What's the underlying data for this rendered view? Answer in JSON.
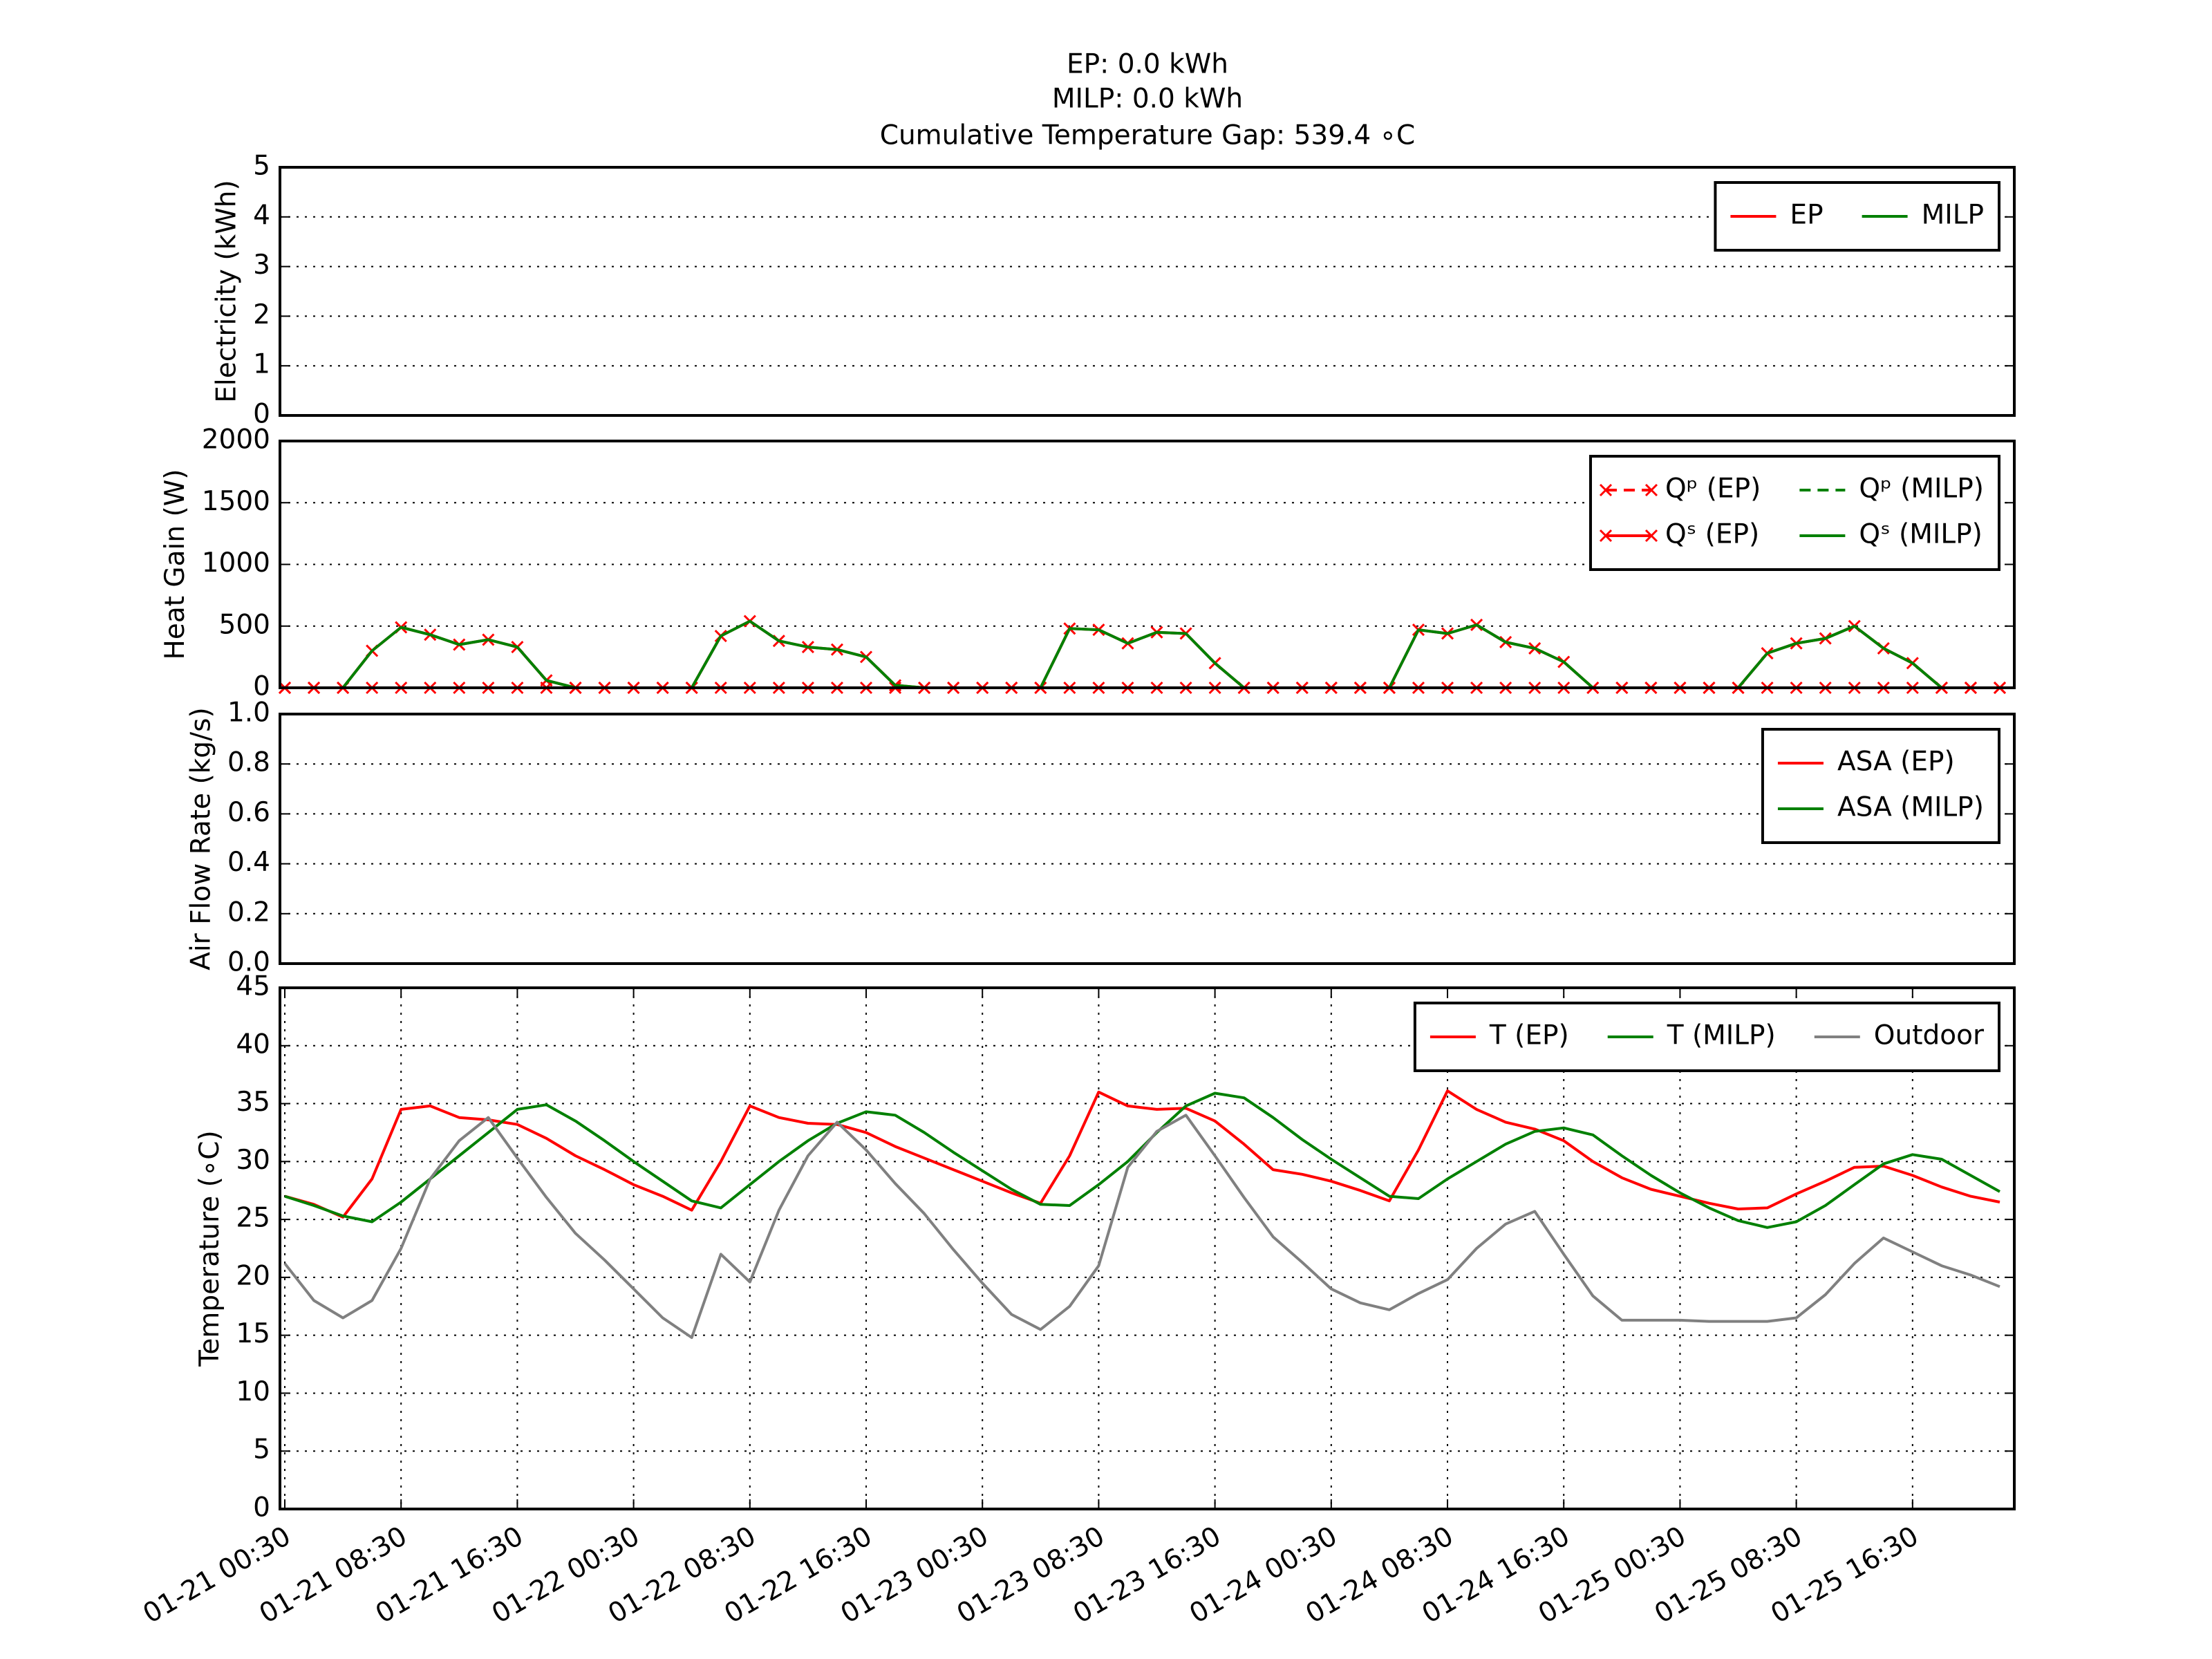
{
  "title": [
    "EP: 0.0 kWh",
    "MILP: 0.0 kWh",
    "Cumulative Temperature Gap: 539.4 ∘C"
  ],
  "chart_data": [
    {
      "type": "line",
      "ylabel": "Electricity (kWh)",
      "x": [
        "01-21 00:30",
        "01-21 02:30",
        "01-21 04:30",
        "01-21 06:30",
        "01-21 08:30",
        "01-21 10:30",
        "01-21 12:30",
        "01-21 14:30",
        "01-21 16:30",
        "01-21 18:30",
        "01-21 20:30",
        "01-21 22:30",
        "01-22 00:30",
        "01-22 02:30",
        "01-22 04:30",
        "01-22 06:30",
        "01-22 08:30",
        "01-22 10:30",
        "01-22 12:30",
        "01-22 14:30",
        "01-22 16:30",
        "01-22 18:30",
        "01-22 20:30",
        "01-22 22:30",
        "01-23 00:30",
        "01-23 02:30",
        "01-23 04:30",
        "01-23 06:30",
        "01-23 08:30",
        "01-23 10:30",
        "01-23 12:30",
        "01-23 14:30",
        "01-23 16:30",
        "01-23 18:30",
        "01-23 20:30",
        "01-23 22:30",
        "01-24 00:30",
        "01-24 02:30",
        "01-24 04:30",
        "01-24 06:30",
        "01-24 08:30",
        "01-24 10:30",
        "01-24 12:30",
        "01-24 14:30",
        "01-24 16:30",
        "01-24 18:30",
        "01-24 20:30",
        "01-24 22:30",
        "01-25 00:30",
        "01-25 02:30",
        "01-25 04:30",
        "01-25 06:30",
        "01-25 08:30",
        "01-25 10:30",
        "01-25 12:30",
        "01-25 14:30",
        "01-25 16:30",
        "01-25 18:30",
        "01-25 20:30",
        "01-25 22:30"
      ],
      "xlim": [
        "01-21 00:10",
        "01-25 23:30"
      ],
      "ylim": [
        0,
        5
      ],
      "yticks": [
        0,
        1,
        2,
        3,
        4,
        5
      ],
      "grid": "y",
      "legend": "upper right",
      "legend_ncol": 2,
      "series": [
        {
          "name": "EP",
          "color": "#ff0000",
          "values": [
            0,
            0,
            0,
            0,
            0,
            0,
            0,
            0,
            0,
            0,
            0,
            0,
            0,
            0,
            0,
            0,
            0,
            0,
            0,
            0,
            0,
            0,
            0,
            0,
            0,
            0,
            0,
            0,
            0,
            0,
            0,
            0,
            0,
            0,
            0,
            0,
            0,
            0,
            0,
            0,
            0,
            0,
            0,
            0,
            0,
            0,
            0,
            0,
            0,
            0,
            0,
            0,
            0,
            0,
            0,
            0,
            0,
            0,
            0,
            0
          ]
        },
        {
          "name": "MILP",
          "color": "#008000",
          "values": [
            0,
            0,
            0,
            0,
            0,
            0,
            0,
            0,
            0,
            0,
            0,
            0,
            0,
            0,
            0,
            0,
            0,
            0,
            0,
            0,
            0,
            0,
            0,
            0,
            0,
            0,
            0,
            0,
            0,
            0,
            0,
            0,
            0,
            0,
            0,
            0,
            0,
            0,
            0,
            0,
            0,
            0,
            0,
            0,
            0,
            0,
            0,
            0,
            0,
            0,
            0,
            0,
            0,
            0,
            0,
            0,
            0,
            0,
            0,
            0
          ]
        }
      ]
    },
    {
      "type": "line",
      "ylabel": "Heat Gain (W)",
      "x": [
        "01-21 00:30",
        "01-21 02:30",
        "01-21 04:30",
        "01-21 06:30",
        "01-21 08:30",
        "01-21 10:30",
        "01-21 12:30",
        "01-21 14:30",
        "01-21 16:30",
        "01-21 18:30",
        "01-21 20:30",
        "01-21 22:30",
        "01-22 00:30",
        "01-22 02:30",
        "01-22 04:30",
        "01-22 06:30",
        "01-22 08:30",
        "01-22 10:30",
        "01-22 12:30",
        "01-22 14:30",
        "01-22 16:30",
        "01-22 18:30",
        "01-22 20:30",
        "01-22 22:30",
        "01-23 00:30",
        "01-23 02:30",
        "01-23 04:30",
        "01-23 06:30",
        "01-23 08:30",
        "01-23 10:30",
        "01-23 12:30",
        "01-23 14:30",
        "01-23 16:30",
        "01-23 18:30",
        "01-23 20:30",
        "01-23 22:30",
        "01-24 00:30",
        "01-24 02:30",
        "01-24 04:30",
        "01-24 06:30",
        "01-24 08:30",
        "01-24 10:30",
        "01-24 12:30",
        "01-24 14:30",
        "01-24 16:30",
        "01-24 18:30",
        "01-24 20:30",
        "01-24 22:30",
        "01-25 00:30",
        "01-25 02:30",
        "01-25 04:30",
        "01-25 06:30",
        "01-25 08:30",
        "01-25 10:30",
        "01-25 12:30",
        "01-25 14:30",
        "01-25 16:30",
        "01-25 18:30",
        "01-25 20:30",
        "01-25 22:30"
      ],
      "xlim": [
        "01-21 00:10",
        "01-25 23:30"
      ],
      "ylim": [
        0,
        2000
      ],
      "yticks": [
        0,
        500,
        1000,
        1500,
        2000
      ],
      "grid": "y",
      "legend": "upper right",
      "legend_ncol": 2,
      "series": [
        {
          "name": "Qᵖ (EP)",
          "color": "#ff0000",
          "linestyle": "dashed",
          "marker": "x",
          "values": [
            0,
            0,
            0,
            0,
            0,
            0,
            0,
            0,
            0,
            0,
            0,
            0,
            0,
            0,
            0,
            0,
            0,
            0,
            0,
            0,
            0,
            0,
            0,
            0,
            0,
            0,
            0,
            0,
            0,
            0,
            0,
            0,
            0,
            0,
            0,
            0,
            0,
            0,
            0,
            0,
            0,
            0,
            0,
            0,
            0,
            0,
            0,
            0,
            0,
            0,
            0,
            0,
            0,
            0,
            0,
            0,
            0,
            0,
            0,
            0
          ]
        },
        {
          "name": "Qˢ (EP)",
          "color": "#ff0000",
          "linestyle": "solid",
          "marker": "x",
          "values": [
            0,
            0,
            0,
            300,
            490,
            430,
            350,
            390,
            330,
            60,
            0,
            0,
            0,
            0,
            0,
            420,
            540,
            380,
            330,
            310,
            250,
            20,
            0,
            0,
            0,
            0,
            0,
            480,
            470,
            360,
            450,
            440,
            200,
            0,
            0,
            0,
            0,
            0,
            0,
            470,
            440,
            510,
            370,
            320,
            210,
            0,
            0,
            0,
            0,
            0,
            0,
            280,
            360,
            400,
            500,
            320,
            200,
            0,
            0,
            0
          ]
        },
        {
          "name": "Qᵖ (MILP)",
          "color": "#008000",
          "linestyle": "dashed",
          "values": [
            0,
            0,
            0,
            0,
            0,
            0,
            0,
            0,
            0,
            0,
            0,
            0,
            0,
            0,
            0,
            0,
            0,
            0,
            0,
            0,
            0,
            0,
            0,
            0,
            0,
            0,
            0,
            0,
            0,
            0,
            0,
            0,
            0,
            0,
            0,
            0,
            0,
            0,
            0,
            0,
            0,
            0,
            0,
            0,
            0,
            0,
            0,
            0,
            0,
            0,
            0,
            0,
            0,
            0,
            0,
            0,
            0,
            0,
            0,
            0
          ]
        },
        {
          "name": "Qˢ (MILP)",
          "color": "#008000",
          "linestyle": "solid",
          "values": [
            0,
            0,
            0,
            300,
            490,
            430,
            350,
            390,
            330,
            60,
            0,
            0,
            0,
            0,
            0,
            420,
            540,
            380,
            330,
            310,
            250,
            20,
            0,
            0,
            0,
            0,
            0,
            480,
            470,
            360,
            450,
            440,
            200,
            0,
            0,
            0,
            0,
            0,
            0,
            470,
            440,
            510,
            370,
            320,
            210,
            0,
            0,
            0,
            0,
            0,
            0,
            280,
            360,
            400,
            500,
            320,
            200,
            0,
            0,
            0
          ]
        }
      ]
    },
    {
      "type": "line",
      "ylabel": "Air Flow Rate (kg/s)",
      "x": [
        "01-21 00:30",
        "01-21 02:30",
        "01-21 04:30",
        "01-21 06:30",
        "01-21 08:30",
        "01-21 10:30",
        "01-21 12:30",
        "01-21 14:30",
        "01-21 16:30",
        "01-21 18:30",
        "01-21 20:30",
        "01-21 22:30",
        "01-22 00:30",
        "01-22 02:30",
        "01-22 04:30",
        "01-22 06:30",
        "01-22 08:30",
        "01-22 10:30",
        "01-22 12:30",
        "01-22 14:30",
        "01-22 16:30",
        "01-22 18:30",
        "01-22 20:30",
        "01-22 22:30",
        "01-23 00:30",
        "01-23 02:30",
        "01-23 04:30",
        "01-23 06:30",
        "01-23 08:30",
        "01-23 10:30",
        "01-23 12:30",
        "01-23 14:30",
        "01-23 16:30",
        "01-23 18:30",
        "01-23 20:30",
        "01-23 22:30",
        "01-24 00:30",
        "01-24 02:30",
        "01-24 04:30",
        "01-24 06:30",
        "01-24 08:30",
        "01-24 10:30",
        "01-24 12:30",
        "01-24 14:30",
        "01-24 16:30",
        "01-24 18:30",
        "01-24 20:30",
        "01-24 22:30",
        "01-25 00:30",
        "01-25 02:30",
        "01-25 04:30",
        "01-25 06:30",
        "01-25 08:30",
        "01-25 10:30",
        "01-25 12:30",
        "01-25 14:30",
        "01-25 16:30",
        "01-25 18:30",
        "01-25 20:30",
        "01-25 22:30"
      ],
      "xlim": [
        "01-21 00:10",
        "01-25 23:30"
      ],
      "ylim": [
        0,
        1
      ],
      "yticks": [
        {
          "value": 0,
          "label": "0.0"
        },
        0.2,
        0.4,
        0.6,
        0.8,
        {
          "value": 1,
          "label": "1.0"
        }
      ],
      "grid": "y",
      "legend": "upper right",
      "legend_ncol": 1,
      "series": [
        {
          "name": "ASA (EP)",
          "color": "#ff0000",
          "values": [
            0,
            0,
            0,
            0,
            0,
            0,
            0,
            0,
            0,
            0,
            0,
            0,
            0,
            0,
            0,
            0,
            0,
            0,
            0,
            0,
            0,
            0,
            0,
            0,
            0,
            0,
            0,
            0,
            0,
            0,
            0,
            0,
            0,
            0,
            0,
            0,
            0,
            0,
            0,
            0,
            0,
            0,
            0,
            0,
            0,
            0,
            0,
            0,
            0,
            0,
            0,
            0,
            0,
            0,
            0,
            0,
            0,
            0,
            0,
            0
          ]
        },
        {
          "name": "ASA (MILP)",
          "color": "#008000",
          "values": [
            0,
            0,
            0,
            0,
            0,
            0,
            0,
            0,
            0,
            0,
            0,
            0,
            0,
            0,
            0,
            0,
            0,
            0,
            0,
            0,
            0,
            0,
            0,
            0,
            0,
            0,
            0,
            0,
            0,
            0,
            0,
            0,
            0,
            0,
            0,
            0,
            0,
            0,
            0,
            0,
            0,
            0,
            0,
            0,
            0,
            0,
            0,
            0,
            0,
            0,
            0,
            0,
            0,
            0,
            0,
            0,
            0,
            0,
            0,
            0
          ]
        }
      ]
    },
    {
      "type": "line",
      "ylabel": "Temperature (∘C)",
      "x": [
        "01-21 00:30",
        "01-21 02:30",
        "01-21 04:30",
        "01-21 06:30",
        "01-21 08:30",
        "01-21 10:30",
        "01-21 12:30",
        "01-21 14:30",
        "01-21 16:30",
        "01-21 18:30",
        "01-21 20:30",
        "01-21 22:30",
        "01-22 00:30",
        "01-22 02:30",
        "01-22 04:30",
        "01-22 06:30",
        "01-22 08:30",
        "01-22 10:30",
        "01-22 12:30",
        "01-22 14:30",
        "01-22 16:30",
        "01-22 18:30",
        "01-22 20:30",
        "01-22 22:30",
        "01-23 00:30",
        "01-23 02:30",
        "01-23 04:30",
        "01-23 06:30",
        "01-23 08:30",
        "01-23 10:30",
        "01-23 12:30",
        "01-23 14:30",
        "01-23 16:30",
        "01-23 18:30",
        "01-23 20:30",
        "01-23 22:30",
        "01-24 00:30",
        "01-24 02:30",
        "01-24 04:30",
        "01-24 06:30",
        "01-24 08:30",
        "01-24 10:30",
        "01-24 12:30",
        "01-24 14:30",
        "01-24 16:30",
        "01-24 18:30",
        "01-24 20:30",
        "01-24 22:30",
        "01-25 00:30",
        "01-25 02:30",
        "01-25 04:30",
        "01-25 06:30",
        "01-25 08:30",
        "01-25 10:30",
        "01-25 12:30",
        "01-25 14:30",
        "01-25 16:30",
        "01-25 18:30",
        "01-25 20:30",
        "01-25 22:30"
      ],
      "xlim": [
        "01-21 00:10",
        "01-25 23:30"
      ],
      "xticks": [
        "01-21 00:30",
        "01-21 08:30",
        "01-21 16:30",
        "01-22 00:30",
        "01-22 08:30",
        "01-22 16:30",
        "01-23 00:30",
        "01-23 08:30",
        "01-23 16:30",
        "01-24 00:30",
        "01-24 08:30",
        "01-24 16:30",
        "01-25 00:30",
        "01-25 08:30",
        "01-25 16:30"
      ],
      "ylim": [
        0,
        45
      ],
      "yticks": [
        0,
        5,
        10,
        15,
        20,
        25,
        30,
        35,
        40,
        45
      ],
      "grid": "both",
      "legend": "upper right",
      "legend_ncol": 3,
      "series": [
        {
          "name": "T (EP)",
          "color": "#ff0000",
          "values": [
            27.0,
            26.3,
            25.2,
            28.5,
            34.5,
            34.8,
            33.8,
            33.6,
            33.2,
            32.0,
            30.5,
            29.3,
            28.0,
            27.0,
            25.8,
            30.0,
            34.8,
            33.8,
            33.3,
            33.2,
            32.5,
            31.3,
            30.3,
            29.3,
            28.3,
            27.3,
            26.4,
            30.5,
            36.0,
            34.8,
            34.5,
            34.6,
            33.5,
            31.5,
            29.3,
            28.9,
            28.3,
            27.5,
            26.6,
            31.0,
            36.1,
            34.5,
            33.4,
            32.8,
            31.8,
            30.0,
            28.6,
            27.6,
            27.0,
            26.4,
            25.9,
            26.0,
            27.2,
            28.3,
            29.5,
            29.6,
            28.8,
            27.8,
            27.0,
            26.5
          ]
        },
        {
          "name": "T (MILP)",
          "color": "#008000",
          "values": [
            27.0,
            26.2,
            25.3,
            24.8,
            26.5,
            28.5,
            30.5,
            32.5,
            34.5,
            34.9,
            33.5,
            31.8,
            30.0,
            28.3,
            26.6,
            26.0,
            28.0,
            30.0,
            31.8,
            33.3,
            34.3,
            34.0,
            32.5,
            30.8,
            29.2,
            27.6,
            26.3,
            26.2,
            28.0,
            30.0,
            32.5,
            34.8,
            35.9,
            35.5,
            33.8,
            31.9,
            30.2,
            28.6,
            27.0,
            26.8,
            28.5,
            30.0,
            31.5,
            32.6,
            32.9,
            32.3,
            30.5,
            28.8,
            27.3,
            26.0,
            24.9,
            24.3,
            24.8,
            26.2,
            28.0,
            29.8,
            30.6,
            30.2,
            28.8,
            27.4
          ]
        },
        {
          "name": "Outdoor",
          "color": "#808080",
          "values": [
            21.2,
            18.0,
            16.5,
            18.0,
            22.5,
            28.5,
            31.8,
            33.8,
            30.3,
            26.9,
            23.8,
            21.5,
            19.0,
            16.5,
            14.8,
            22.0,
            19.6,
            25.8,
            30.5,
            33.4,
            31.0,
            28.1,
            25.5,
            22.4,
            19.5,
            16.8,
            15.5,
            17.5,
            21.0,
            29.5,
            32.6,
            34.0,
            30.5,
            26.9,
            23.5,
            21.3,
            19.0,
            17.8,
            17.2,
            18.6,
            19.8,
            22.5,
            24.6,
            25.7,
            22.0,
            18.4,
            16.3,
            16.3,
            16.3,
            16.2,
            16.2,
            16.2,
            16.5,
            18.5,
            21.2,
            23.4,
            22.2,
            21.0,
            20.2,
            19.2
          ]
        }
      ]
    }
  ]
}
